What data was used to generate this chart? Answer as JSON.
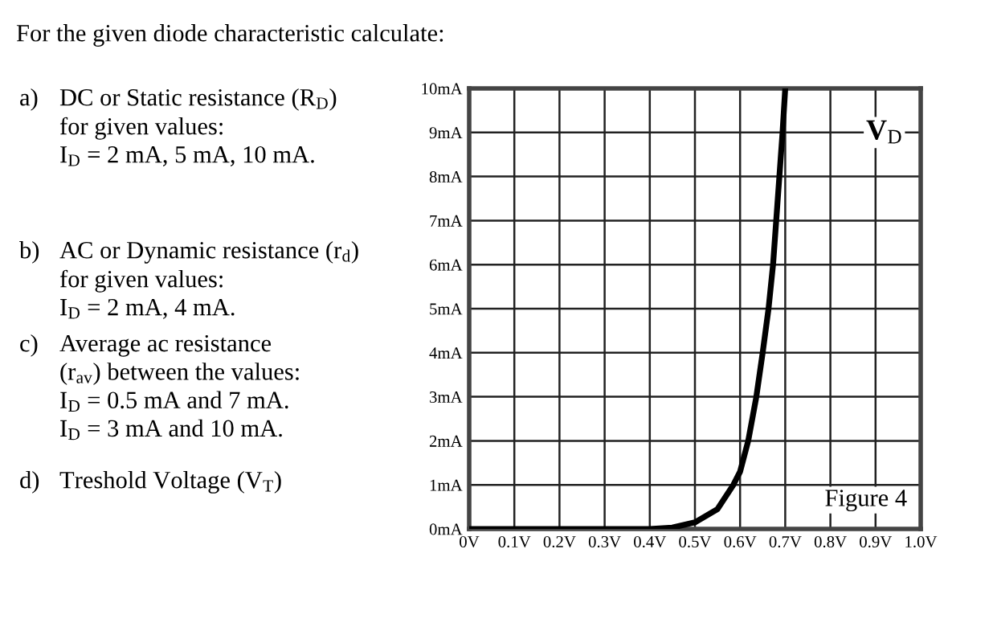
{
  "chart_data": {
    "type": "line",
    "title": "For the given diode characteristic calculate:",
    "x": [
      0,
      0.1,
      0.2,
      0.3,
      0.4,
      0.45,
      0.5,
      0.55,
      0.585,
      0.6,
      0.618,
      0.636,
      0.65,
      0.663,
      0.673,
      0.68,
      0.687,
      0.694,
      0.7
    ],
    "series": [
      {
        "color": "#000000",
        "values": [
          0,
          0,
          0,
          0,
          0,
          0.03,
          0.15,
          0.45,
          1,
          1.3,
          2,
          3,
          4,
          5,
          6,
          7,
          8,
          9,
          10
        ]
      }
    ],
    "xlim": [
      0,
      1.0
    ],
    "ylim": [
      0,
      10
    ],
    "xticks": [
      {
        "value": 0,
        "label": "0V"
      },
      {
        "value": 0.1,
        "label": "0.1V"
      },
      {
        "value": 0.2,
        "label": "0.2V"
      },
      {
        "value": 0.3,
        "label": "0.3V"
      },
      {
        "value": 0.4,
        "label": "0.4V"
      },
      {
        "value": 0.5,
        "label": "0.5V"
      },
      {
        "value": 0.6,
        "label": "0.6V"
      },
      {
        "value": 0.7,
        "label": "0.7V"
      },
      {
        "value": 0.8,
        "label": "0.8V"
      },
      {
        "value": 0.9,
        "label": "0.9V"
      },
      {
        "value": 1.0,
        "label": "1.0V"
      }
    ],
    "yticks": [
      {
        "value": 0,
        "label": "0mA"
      },
      {
        "value": 1,
        "label": "1mA"
      },
      {
        "value": 2,
        "label": "2mA"
      },
      {
        "value": 3,
        "label": "3mA"
      },
      {
        "value": 4,
        "label": "4mA"
      },
      {
        "value": 5,
        "label": "5mA"
      },
      {
        "value": 6,
        "label": "6mA"
      },
      {
        "value": 7,
        "label": "7mA"
      },
      {
        "value": 8,
        "label": "8mA"
      },
      {
        "value": 9,
        "label": "9mA"
      },
      {
        "value": 10,
        "label": "10mA"
      }
    ],
    "grid": true,
    "marker": "none",
    "line_style": "solid",
    "annotations": [
      "a)",
      "DC or Static resistance (R$_{D}$)\nfor given values:\nI$_{D}$ = 2 mA, 5 mA, 10 mA.",
      "b)",
      "AC or Dynamic resistance (r$_{d}$)\nfor given values:\nI$_{D}$ = 2 mA, 4 mA.",
      "c)",
      "Average ac resistance\n(r$_{av}$) between the values:\nI$_{D}$ = 0.5 mA and 7 mA.\nI$_{D}$ = 3 mA and 10 mA.",
      "d)",
      "Treshold Voltage (V$_{T}$)",
      "V$_{D}$",
      "Figure 4"
    ]
  }
}
